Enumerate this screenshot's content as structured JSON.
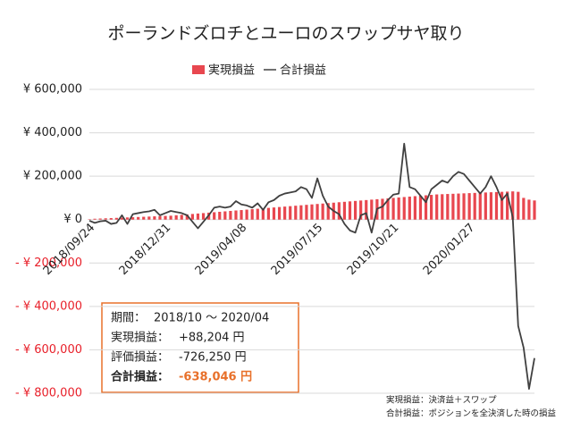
{
  "chart_data": {
    "type": "bar_line",
    "title": "ポーランドズロチとユーロのスワップサヤ取り",
    "categories": [
      "2018/09/24",
      null,
      null,
      null,
      null,
      null,
      null,
      null,
      null,
      null,
      null,
      null,
      null,
      null,
      "2018/12/31",
      null,
      null,
      null,
      null,
      null,
      null,
      null,
      null,
      null,
      null,
      null,
      null,
      null,
      "2019/04/08",
      null,
      null,
      null,
      null,
      null,
      null,
      null,
      null,
      null,
      null,
      null,
      null,
      null,
      "2019/07/15",
      null,
      null,
      null,
      null,
      null,
      null,
      null,
      null,
      null,
      null,
      null,
      null,
      null,
      "2019/10/21",
      null,
      null,
      null,
      null,
      null,
      null,
      null,
      null,
      null,
      null,
      null,
      null,
      null,
      "2020/01/27",
      null,
      null,
      null,
      null,
      null,
      null,
      null,
      null,
      null,
      null,
      null,
      null
    ],
    "series": [
      {
        "name": "実現損益",
        "kind": "bar",
        "color": "#e8474f",
        "values": [
          2000,
          4000,
          5000,
          6000,
          7000,
          8000,
          9000,
          10000,
          11000,
          12000,
          13000,
          14000,
          15000,
          16000,
          17000,
          18000,
          20000,
          22000,
          24000,
          26000,
          28000,
          30000,
          32000,
          34000,
          36000,
          38000,
          40000,
          42000,
          44000,
          46000,
          48000,
          50000,
          52000,
          54000,
          56000,
          58000,
          60000,
          62000,
          64000,
          66000,
          68000,
          70000,
          72000,
          74000,
          76000,
          78000,
          80000,
          82000,
          84000,
          86000,
          88000,
          90000,
          92000,
          94000,
          96000,
          98000,
          100000,
          102000,
          104000,
          106000,
          108000,
          110000,
          112000,
          114000,
          116000,
          117000,
          118000,
          119000,
          120000,
          121000,
          122000,
          123000,
          124000,
          125000,
          126000,
          127000,
          128000,
          129000,
          130000,
          128000,
          100000,
          92000,
          88204
        ]
      },
      {
        "name": "合計損益",
        "kind": "line",
        "color": "#404040",
        "values": [
          -5000,
          -15000,
          -8000,
          -5000,
          -20000,
          -15000,
          20000,
          -20000,
          25000,
          30000,
          35000,
          38000,
          45000,
          20000,
          30000,
          40000,
          35000,
          30000,
          20000,
          -10000,
          -40000,
          -10000,
          20000,
          55000,
          60000,
          55000,
          60000,
          85000,
          70000,
          65000,
          55000,
          75000,
          45000,
          80000,
          90000,
          110000,
          120000,
          125000,
          130000,
          150000,
          140000,
          100000,
          190000,
          110000,
          60000,
          40000,
          25000,
          -20000,
          -50000,
          -60000,
          20000,
          30000,
          -60000,
          50000,
          60000,
          90000,
          115000,
          120000,
          350000,
          150000,
          140000,
          110000,
          80000,
          140000,
          160000,
          180000,
          170000,
          200000,
          220000,
          210000,
          180000,
          150000,
          120000,
          150000,
          200000,
          150000,
          90000,
          120000,
          10000,
          -490000,
          -590000,
          -780000,
          -638046
        ]
      }
    ],
    "ylim": [
      -800000,
      600000
    ],
    "yticks": [
      {
        "value": -800000,
        "label": "- ¥ 800,000"
      },
      {
        "value": -600000,
        "label": "- ¥ 600,000"
      },
      {
        "value": -400000,
        "label": "- ¥ 400,000"
      },
      {
        "value": -200000,
        "label": "- ¥ 200,000"
      },
      {
        "value": 0,
        "label": "¥ 0"
      },
      {
        "value": 200000,
        "label": "¥ 200,000"
      },
      {
        "value": 400000,
        "label": "¥ 400,000"
      },
      {
        "value": 600000,
        "label": "¥ 600,000"
      }
    ],
    "negative_tick_color": "#e8202a",
    "grid": true,
    "legend": "top",
    "summary": [
      {
        "label": "期間：",
        "value": "2018/10 ～ 2020/04"
      },
      {
        "label": "実現損益：",
        "value": "+88,204 円"
      },
      {
        "label": "評価損益：",
        "value": "-726,250 円"
      },
      {
        "label": "合計損益：",
        "value": "-638,046 円"
      }
    ],
    "notes": [
      "実現損益：決済益＋スワップ",
      "合計損益：ポジションを全決済した時の損益"
    ]
  }
}
